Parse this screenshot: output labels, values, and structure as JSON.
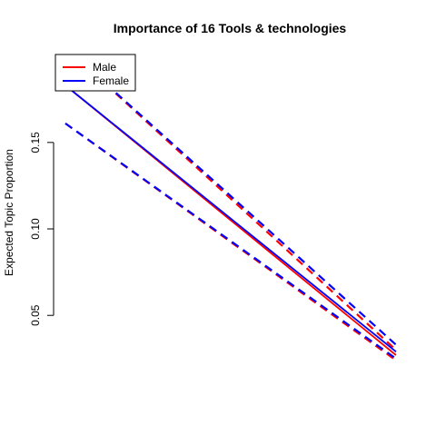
{
  "chart_data": {
    "type": "line",
    "title": "Importance of 16 Tools & technologies",
    "xlabel": "",
    "ylabel": "Expected Topic Proportion",
    "ylim": [
      0.027,
      0.183
    ],
    "y_ticks": [
      0.05,
      0.1,
      0.15
    ],
    "y_tick_labels": [
      "0.05",
      "0.10",
      "0.15"
    ],
    "x_range": [
      0,
      1
    ],
    "x_axis_shown": false,
    "grid": false,
    "legend": {
      "position": "top-left",
      "entries": [
        {
          "label": "Male",
          "color": "#ff0000"
        },
        {
          "label": "Female",
          "color": "#0000ff"
        }
      ]
    },
    "series": [
      {
        "name": "Male",
        "color": "#ff0000",
        "style": "solid",
        "x": [
          0.0,
          1.0
        ],
        "y": [
          0.183,
          0.027
        ]
      },
      {
        "color": "#ff0000",
        "style": "dashed",
        "x": [
          0.0,
          1.0
        ],
        "y": [
          0.161,
          0.024
        ]
      },
      {
        "color": "#ff0000",
        "style": "dashed",
        "x": [
          0.0,
          1.0
        ],
        "y": [
          0.205,
          0.03
        ]
      },
      {
        "name": "Female",
        "color": "#0000ff",
        "style": "solid",
        "x": [
          0.0,
          1.0
        ],
        "y": [
          0.183,
          0.029
        ]
      },
      {
        "color": "#0000ff",
        "style": "dashed",
        "x": [
          0.0,
          1.0
        ],
        "y": [
          0.161,
          0.025
        ]
      },
      {
        "color": "#0000ff",
        "style": "dashed",
        "x": [
          0.0,
          1.0
        ],
        "y": [
          0.205,
          0.033
        ]
      }
    ]
  }
}
